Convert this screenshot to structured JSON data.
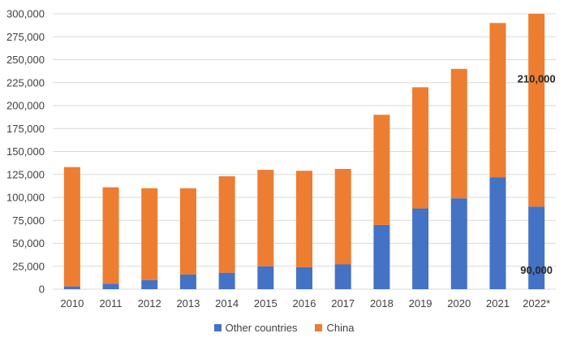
{
  "chart_data": {
    "type": "bar",
    "stacked": true,
    "categories": [
      "2010",
      "2011",
      "2012",
      "2013",
      "2014",
      "2015",
      "2016",
      "2017",
      "2018",
      "2019",
      "2020",
      "2021",
      "2022*"
    ],
    "series": [
      {
        "name": "Other countries",
        "color": "#4472C4",
        "values": [
          3000,
          6000,
          10000,
          16000,
          18000,
          25000,
          24000,
          27000,
          70000,
          88000,
          99000,
          122000,
          90000
        ]
      },
      {
        "name": "China",
        "color": "#ED7D31",
        "values": [
          130000,
          105000,
          100000,
          94000,
          105000,
          105000,
          105000,
          104000,
          120000,
          132000,
          141000,
          168000,
          210000
        ]
      }
    ],
    "ylim": [
      0,
      300000
    ],
    "yticks": [
      "0",
      "25,000",
      "50,000",
      "75,000",
      "100,000",
      "125,000",
      "150,000",
      "175,000",
      "200,000",
      "225,000",
      "250,000",
      "275,000",
      "300,000"
    ],
    "ytick_step": 25000,
    "grid": true,
    "legend_position": "bottom",
    "annotations": [
      {
        "category": "2022*",
        "series": "China",
        "text": "210,000"
      },
      {
        "category": "2022*",
        "series": "Other countries",
        "text": "90,000"
      }
    ]
  }
}
